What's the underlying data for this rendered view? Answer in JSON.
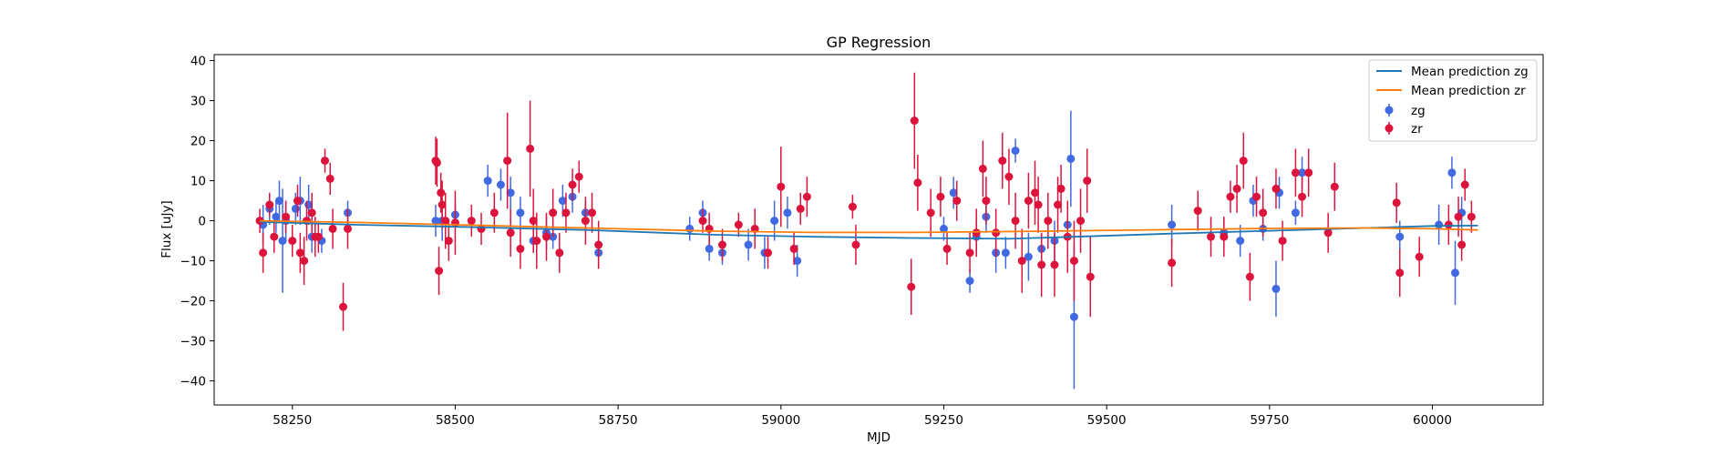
{
  "chart_data": {
    "type": "scatter",
    "title": "GP Regression",
    "xlabel": "MJD",
    "ylabel": "Flux [uJy]",
    "xlim": [
      58130,
      60170
    ],
    "ylim": [
      -46,
      41.5
    ],
    "xticks": [
      58250,
      58500,
      58750,
      59000,
      59250,
      59500,
      59750,
      60000
    ],
    "yticks": [
      -40,
      -30,
      -20,
      -10,
      0,
      10,
      20,
      30,
      40
    ],
    "xtick_labels": [
      "58250",
      "58500",
      "58750",
      "59000",
      "59250",
      "59500",
      "59750",
      "60000"
    ],
    "ytick_labels": [
      "−40",
      "−30",
      "−20",
      "−10",
      "0",
      "10",
      "20",
      "30",
      "40"
    ],
    "grid": false,
    "legend_position": "top-right",
    "colors": {
      "zg": "#4169e1",
      "zr": "#dc143c",
      "mean_zg": "#1f77b4",
      "mean_zr": "#ff7f0e"
    },
    "lines": [
      {
        "name": "Mean prediction zg",
        "x": [
          58200,
          58350,
          58500,
          58700,
          58900,
          59050,
          59200,
          59350,
          59450,
          59600,
          59750,
          59900,
          60000,
          60070
        ],
        "y": [
          -0.3,
          -1.0,
          -1.5,
          -2.3,
          -3.5,
          -4.0,
          -4.3,
          -4.5,
          -4.0,
          -3.2,
          -2.5,
          -1.8,
          -1.3,
          -1.2
        ]
      },
      {
        "name": "Mean prediction zr",
        "x": [
          58200,
          58350,
          58500,
          58700,
          58900,
          59050,
          59200,
          59350,
          59450,
          59600,
          59750,
          59900,
          60000,
          60070
        ],
        "y": [
          0.0,
          -0.4,
          -1.0,
          -1.8,
          -2.6,
          -2.9,
          -2.9,
          -2.7,
          -2.5,
          -2.2,
          -1.9,
          -1.8,
          -2.0,
          -2.3
        ]
      }
    ],
    "series": [
      {
        "name": "zg",
        "x": [
          58205,
          58215,
          58225,
          58230,
          58235,
          58240,
          58255,
          58262,
          58275,
          58280,
          58295,
          58335,
          58470,
          58480,
          58500,
          58550,
          58570,
          58585,
          58600,
          58620,
          58640,
          58650,
          58665,
          58680,
          58700,
          58720,
          58860,
          58880,
          58890,
          58910,
          58950,
          58975,
          58990,
          59010,
          59025,
          59250,
          59265,
          59290,
          59300,
          59315,
          59330,
          59345,
          59360,
          59380,
          59400,
          59420,
          59440,
          59445,
          59450,
          59600,
          59680,
          59705,
          59725,
          59740,
          59760,
          59765,
          59790,
          59800,
          59950,
          60010,
          60030,
          60035,
          60045
        ],
        "y": [
          -1,
          3,
          1,
          5,
          -5,
          0,
          3,
          5,
          4,
          -4,
          -5,
          2,
          0,
          0,
          1.5,
          10,
          9,
          7,
          2,
          -5,
          -3,
          -4,
          5,
          6,
          2,
          -8,
          -2,
          2,
          -7,
          -8,
          -6,
          -8,
          0,
          2,
          -10,
          -2,
          7,
          -15,
          -4,
          1,
          -8,
          -8,
          17.5,
          -9,
          -7,
          -5,
          -1,
          15.5,
          -24,
          -1,
          -3,
          -5,
          5,
          -2,
          -17,
          7,
          2,
          12,
          -4,
          -1,
          12,
          -13,
          2
        ],
        "yerr": [
          5,
          4,
          4,
          5,
          13,
          5,
          4,
          6,
          5,
          4,
          3,
          3,
          4,
          5,
          3,
          4,
          4,
          4,
          4,
          3,
          4,
          3,
          4,
          4,
          3,
          4,
          3,
          3,
          3,
          3,
          4,
          4,
          5,
          4,
          4,
          3,
          4,
          3,
          4,
          4,
          5,
          4,
          3,
          6,
          4,
          5,
          5,
          12,
          18,
          5,
          4,
          4,
          4,
          3,
          7,
          4,
          3,
          4,
          4,
          5,
          4,
          8,
          4
        ]
      },
      {
        "name": "zr",
        "x": [
          58200,
          58205,
          58215,
          58222,
          58240,
          58250,
          58258,
          58262,
          58268,
          58272,
          58280,
          58285,
          58290,
          58300,
          58308,
          58312,
          58328,
          58335,
          58470,
          58472,
          58475,
          58478,
          58480,
          58485,
          58490,
          58500,
          58525,
          58540,
          58560,
          58580,
          58585,
          58600,
          58615,
          58620,
          58625,
          58640,
          58650,
          58660,
          58670,
          58680,
          58690,
          58700,
          58710,
          58720,
          58880,
          58890,
          58910,
          58935,
          58960,
          58980,
          59000,
          59020,
          59030,
          59040,
          59110,
          59115,
          59200,
          59205,
          59210,
          59230,
          59245,
          59255,
          59270,
          59290,
          59300,
          59310,
          59315,
          59330,
          59340,
          59350,
          59360,
          59370,
          59380,
          59390,
          59395,
          59400,
          59410,
          59420,
          59425,
          59430,
          59440,
          59450,
          59460,
          59470,
          59475,
          59600,
          59640,
          59660,
          59680,
          59690,
          59700,
          59710,
          59720,
          59730,
          59740,
          59760,
          59770,
          59790,
          59800,
          59810,
          59840,
          59850,
          59945,
          59950,
          59980,
          60025,
          60040,
          60045,
          60050,
          60060
        ],
        "y": [
          0,
          -8,
          4,
          -4,
          1,
          -5,
          5,
          -8,
          -10,
          0,
          2,
          -4,
          -4,
          15,
          10.5,
          -2,
          -21.5,
          -2,
          15,
          14.5,
          -12.5,
          7,
          4,
          0,
          -5,
          -0.5,
          0,
          -2,
          2,
          15,
          -3,
          -7,
          18,
          0,
          -5,
          -4,
          2,
          -8,
          2,
          9,
          11,
          0,
          2,
          -6,
          0,
          -2,
          -6,
          -1,
          -2,
          -8,
          8.5,
          -7,
          3,
          6,
          3.5,
          -6,
          -16.5,
          25,
          9.5,
          2,
          6,
          -7,
          5,
          -8,
          -3,
          13,
          5,
          -3,
          15,
          11,
          0,
          -10,
          5,
          7,
          4,
          -11,
          0,
          -11,
          4,
          8,
          -4,
          -10,
          0,
          10,
          -14,
          -10.5,
          2.5,
          -4,
          -4,
          6,
          8,
          15,
          -14,
          6,
          2,
          8,
          -5,
          12,
          6,
          12,
          -3,
          8.5,
          4.5,
          -13,
          -9,
          -1,
          1,
          -6,
          9,
          1
        ],
        "yerr": [
          3,
          5,
          3,
          4,
          4,
          4,
          4,
          5,
          6,
          5,
          5,
          5,
          4,
          3,
          4,
          5,
          6,
          5,
          6,
          6,
          6,
          5,
          6,
          7,
          5,
          8,
          4,
          4,
          5,
          12,
          6,
          5,
          12,
          8,
          7,
          6,
          6,
          5,
          5,
          4,
          4,
          6,
          5,
          6,
          3,
          4,
          4,
          3,
          5,
          4,
          10,
          4,
          4,
          5,
          3,
          5,
          7,
          12,
          7,
          6,
          5,
          4,
          5,
          5,
          6,
          7,
          6,
          6,
          7,
          7,
          7,
          8,
          7,
          8,
          7,
          8,
          7,
          8,
          7,
          6,
          9,
          10,
          8,
          8,
          10,
          6,
          5,
          5,
          5,
          4,
          6,
          7,
          6,
          5,
          6,
          5,
          5,
          6,
          5,
          6,
          5,
          6,
          5,
          6,
          5,
          5,
          5,
          4,
          4,
          4
        ]
      }
    ]
  }
}
